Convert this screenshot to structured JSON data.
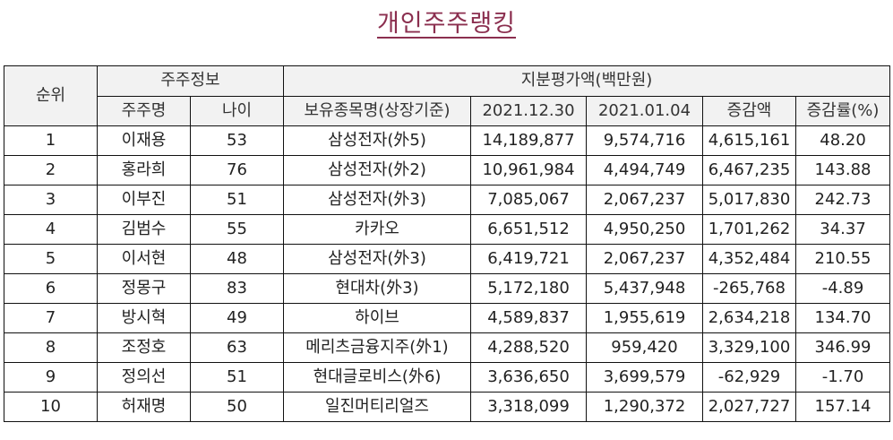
{
  "title": "개인주주랭킹",
  "header": {
    "rank": "순위",
    "shareholder_info": "주주정보",
    "equity_value": "지분평가액(백만원)",
    "columns": [
      "주주명",
      "나이",
      "보유종목명(상장기준)",
      "2021.12.30",
      "2021.01.04",
      "증감액",
      "증감률(%)"
    ]
  },
  "rows": [
    {
      "rank": "1",
      "name": "이재용",
      "age": "53",
      "holding": "삼성전자(外5)",
      "v2021_12_30": "14,189,877",
      "v2021_01_04": "9,574,716",
      "change": "4,615,161",
      "change_pct": "48.20"
    },
    {
      "rank": "2",
      "name": "홍라희",
      "age": "76",
      "holding": "삼성전자(外2)",
      "v2021_12_30": "10,961,984",
      "v2021_01_04": "4,494,749",
      "change": "6,467,235",
      "change_pct": "143.88"
    },
    {
      "rank": "3",
      "name": "이부진",
      "age": "51",
      "holding": "삼성전자(外3)",
      "v2021_12_30": "7,085,067",
      "v2021_01_04": "2,067,237",
      "change": "5,017,830",
      "change_pct": "242.73"
    },
    {
      "rank": "4",
      "name": "김범수",
      "age": "55",
      "holding": "카카오",
      "v2021_12_30": "6,651,512",
      "v2021_01_04": "4,950,250",
      "change": "1,701,262",
      "change_pct": "34.37"
    },
    {
      "rank": "5",
      "name": "이서현",
      "age": "48",
      "holding": "삼성전자(外3)",
      "v2021_12_30": "6,419,721",
      "v2021_01_04": "2,067,237",
      "change": "4,352,484",
      "change_pct": "210.55"
    },
    {
      "rank": "6",
      "name": "정몽구",
      "age": "83",
      "holding": "현대차(外3)",
      "v2021_12_30": "5,172,180",
      "v2021_01_04": "5,437,948",
      "change": "-265,768",
      "change_pct": "-4.89"
    },
    {
      "rank": "7",
      "name": "방시혁",
      "age": "49",
      "holding": "하이브",
      "v2021_12_30": "4,589,837",
      "v2021_01_04": "1,955,619",
      "change": "2,634,218",
      "change_pct": "134.70"
    },
    {
      "rank": "8",
      "name": "조정호",
      "age": "63",
      "holding": "메리츠금융지주(外1)",
      "v2021_12_30": "4,288,520",
      "v2021_01_04": "959,420",
      "change": "3,329,100",
      "change_pct": "346.99"
    },
    {
      "rank": "9",
      "name": "정의선",
      "age": "51",
      "holding": "현대글로비스(外6)",
      "v2021_12_30": "3,636,650",
      "v2021_01_04": "3,699,579",
      "change": "-62,929",
      "change_pct": "-1.70"
    },
    {
      "rank": "10",
      "name": "허재명",
      "age": "50",
      "holding": "일진머티리얼즈",
      "v2021_12_30": "3,318,099",
      "v2021_01_04": "1,290,372",
      "change": "2,027,727",
      "change_pct": "157.14"
    }
  ],
  "colors": {
    "title": "#8b2f4f",
    "header_bg": "#f2f2f2",
    "border": "#111111"
  }
}
